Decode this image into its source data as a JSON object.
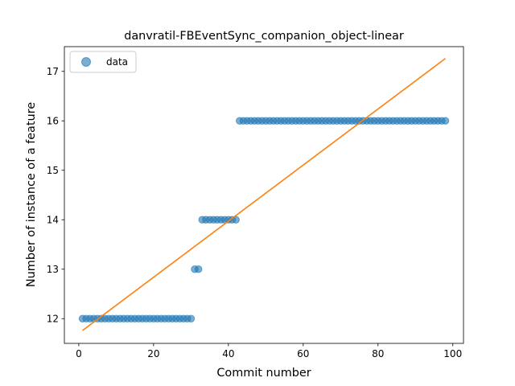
{
  "chart_data": {
    "type": "scatter",
    "title": "danvratil-FBEventSync_companion_object-linear",
    "xlabel": "Commit number",
    "ylabel": "Number of instance of a feature",
    "xlim": [
      -3.85,
      102.85
    ],
    "ylim": [
      11.5,
      17.5
    ],
    "xticks": [
      0,
      20,
      40,
      60,
      80,
      100
    ],
    "yticks": [
      12,
      13,
      14,
      15,
      16,
      17
    ],
    "grid": false,
    "legend": {
      "placement": "upper-left",
      "entries": [
        "data"
      ]
    },
    "series": [
      {
        "name": "data",
        "kind": "points",
        "color": "#1f77b4",
        "x": [
          1,
          2,
          3,
          4,
          5,
          6,
          7,
          8,
          9,
          10,
          11,
          12,
          13,
          14,
          15,
          16,
          17,
          18,
          19,
          20,
          21,
          22,
          23,
          24,
          25,
          26,
          27,
          28,
          29,
          30,
          31,
          32,
          33,
          34,
          35,
          36,
          37,
          38,
          39,
          40,
          41,
          42,
          43,
          44,
          45,
          46,
          47,
          48,
          49,
          50,
          51,
          52,
          53,
          54,
          55,
          56,
          57,
          58,
          59,
          60,
          61,
          62,
          63,
          64,
          65,
          66,
          67,
          68,
          69,
          70,
          71,
          72,
          73,
          74,
          75,
          76,
          77,
          78,
          79,
          80,
          81,
          82,
          83,
          84,
          85,
          86,
          87,
          88,
          89,
          90,
          91,
          92,
          93,
          94,
          95,
          96,
          97,
          98
        ],
        "y": [
          12,
          12,
          12,
          12,
          12,
          12,
          12,
          12,
          12,
          12,
          12,
          12,
          12,
          12,
          12,
          12,
          12,
          12,
          12,
          12,
          12,
          12,
          12,
          12,
          12,
          12,
          12,
          12,
          12,
          12,
          13,
          13,
          14,
          14,
          14,
          14,
          14,
          14,
          14,
          14,
          14,
          14,
          16,
          16,
          16,
          16,
          16,
          16,
          16,
          16,
          16,
          16,
          16,
          16,
          16,
          16,
          16,
          16,
          16,
          16,
          16,
          16,
          16,
          16,
          16,
          16,
          16,
          16,
          16,
          16,
          16,
          16,
          16,
          16,
          16,
          16,
          16,
          16,
          16,
          16,
          16,
          16,
          16,
          16,
          16,
          16,
          16,
          16,
          16,
          16,
          16,
          16,
          16,
          16,
          16,
          16,
          16,
          16
        ]
      },
      {
        "kind": "line",
        "color": "#ff7f0e",
        "x": [
          1,
          98
        ],
        "y": [
          11.76,
          17.26
        ]
      }
    ]
  }
}
